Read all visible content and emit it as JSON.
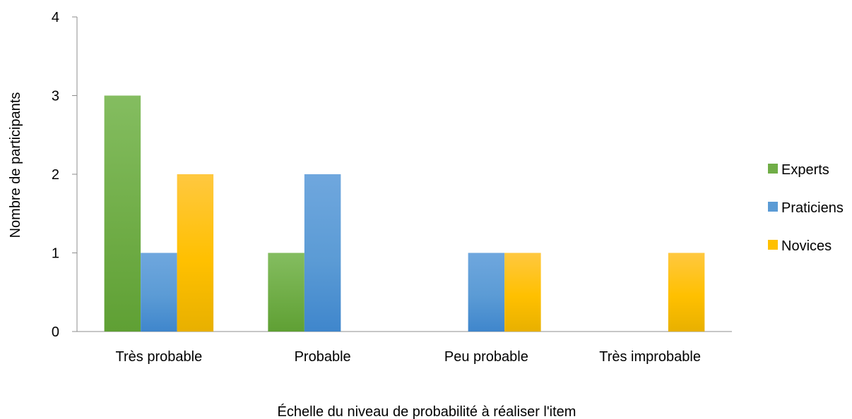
{
  "chart_data": {
    "type": "bar",
    "title": "",
    "xlabel": "Échelle du niveau de probabilité à réaliser l'item",
    "ylabel": "Nombre de participants",
    "categories": [
      "Très probable",
      "Probable",
      "Peu probable",
      "Très improbable"
    ],
    "series": [
      {
        "name": "Experts",
        "values": [
          3,
          1,
          0,
          0
        ],
        "color": "#70AD47",
        "color_light": "#84BD60",
        "color_dark": "#5FA034"
      },
      {
        "name": "Praticiens",
        "values": [
          1,
          2,
          1,
          0
        ],
        "color": "#5B9BD5",
        "color_light": "#6FA7DE",
        "color_dark": "#3F86CC"
      },
      {
        "name": "Novices",
        "values": [
          2,
          0,
          1,
          1
        ],
        "color": "#FFC000",
        "color_light": "#FFC840",
        "color_dark": "#E8B000"
      }
    ],
    "yticks": [
      "0",
      "1",
      "2",
      "3",
      "4"
    ],
    "ylim": [
      0,
      4
    ],
    "grid": false,
    "legend_position": "right"
  }
}
